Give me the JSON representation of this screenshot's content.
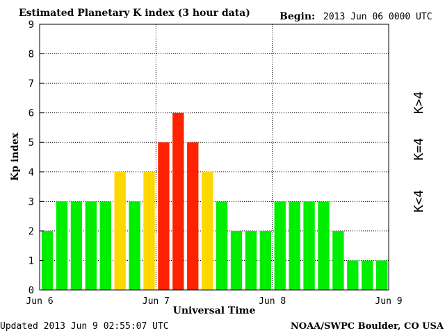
{
  "chart_data": {
    "type": "bar",
    "title": "Estimated Planetary K index (3 hour data)",
    "begin_label": "Begin:",
    "begin_value": "2013 Jun 06 0000 UTC",
    "ylabel": "Kp index",
    "xlabel": "Universal Time",
    "ylim": [
      0,
      9
    ],
    "yticks": [
      "0",
      "1",
      "2",
      "3",
      "4",
      "5",
      "6",
      "7",
      "8",
      "9"
    ],
    "xticks": [
      "Jun 6",
      "Jun 7",
      "Jun 8",
      "Jun 9"
    ],
    "values": [
      2,
      3,
      3,
      3,
      3,
      4,
      3,
      4,
      5,
      6,
      5,
      4,
      3,
      2,
      2,
      2,
      3,
      3,
      3,
      3,
      2,
      1,
      1,
      1
    ],
    "colors": {
      "low": "#00ee00",
      "moderate": "#ffd700",
      "high": "#ff2200"
    },
    "legend": [
      "K<4",
      "K=4",
      "K>4"
    ],
    "grid": true,
    "updated": "Updated 2013 Jun  9 02:55:07 UTC",
    "source": "NOAA/SWPC Boulder, CO USA"
  }
}
